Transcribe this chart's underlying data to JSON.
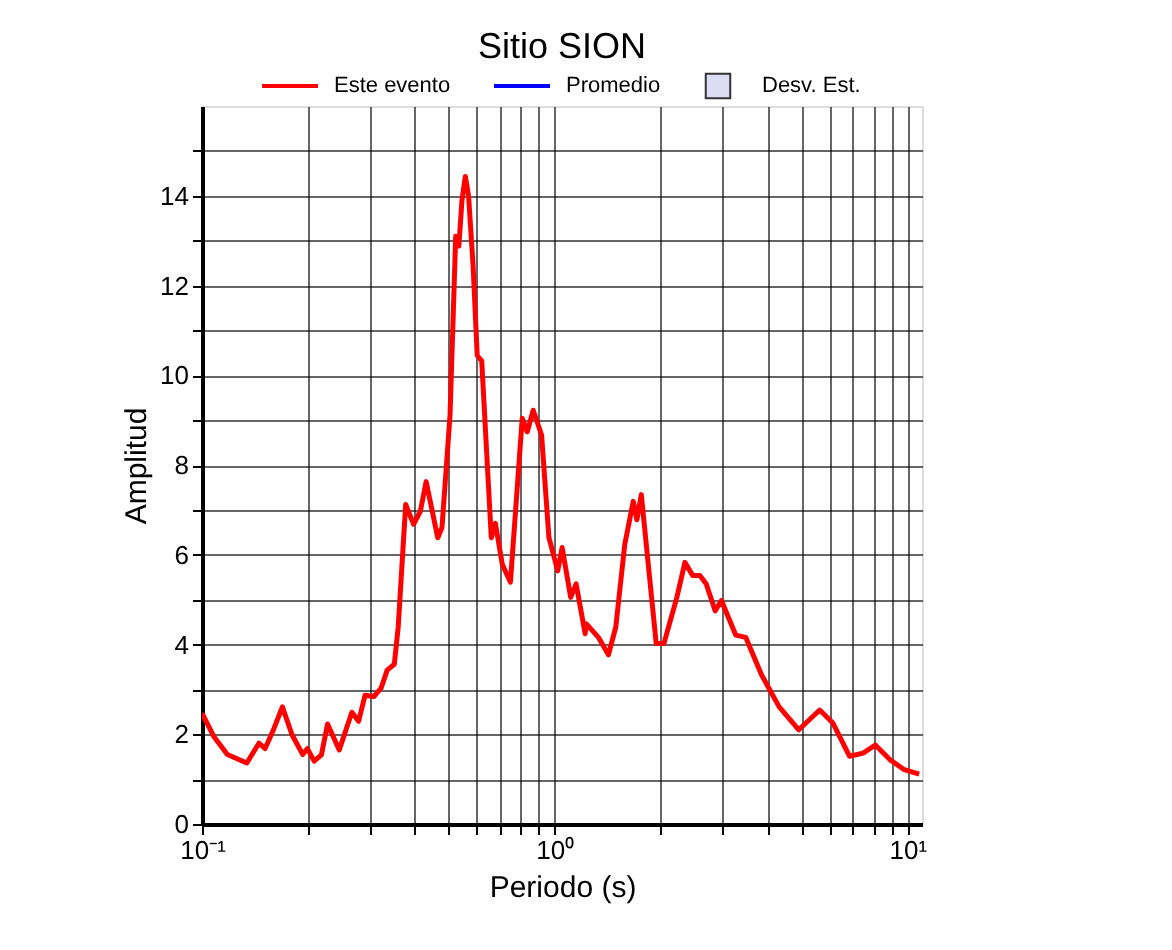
{
  "chart_data": {
    "type": "line",
    "title": "Sitio SION",
    "xlabel": "Periodo (s)",
    "ylabel": "Amplitud",
    "log": "x",
    "grid": true,
    "legend": "top",
    "xlim": [
      0.1,
      11
    ],
    "ylim": [
      0,
      16
    ],
    "xticks": [
      {
        "value": 0.1,
        "label": "10⁻¹"
      },
      {
        "value": 0.2,
        "label": null
      },
      {
        "value": 0.3,
        "label": null
      },
      {
        "value": 0.4,
        "label": null
      },
      {
        "value": 0.5,
        "label": null
      },
      {
        "value": 0.6,
        "label": null
      },
      {
        "value": 0.7,
        "label": null
      },
      {
        "value": 0.8,
        "label": null
      },
      {
        "value": 0.9,
        "label": null
      },
      {
        "value": 1,
        "label": "10⁰"
      },
      {
        "value": 2,
        "label": null
      },
      {
        "value": 3,
        "label": null
      },
      {
        "value": 4,
        "label": null
      },
      {
        "value": 5,
        "label": null
      },
      {
        "value": 6,
        "label": null
      },
      {
        "value": 7,
        "label": null
      },
      {
        "value": 8,
        "label": null
      },
      {
        "value": 9,
        "label": null
      },
      {
        "value": 10,
        "label": "10¹"
      }
    ],
    "yticks": [
      0,
      {
        "value": 1,
        "label": null
      },
      2,
      {
        "value": 3,
        "label": null
      },
      4,
      {
        "value": 5,
        "label": null
      },
      6,
      {
        "value": 7,
        "label": null
      },
      8,
      {
        "value": 9,
        "label": null
      },
      10,
      {
        "value": 11,
        "label": null
      },
      12,
      {
        "value": 13,
        "label": null
      },
      14,
      {
        "value": 15,
        "label": null
      }
    ],
    "x": [
      0.1,
      0.108,
      0.118,
      0.134,
      0.145,
      0.151,
      0.16,
      0.169,
      0.18,
      0.193,
      0.199,
      0.208,
      0.218,
      0.227,
      0.245,
      0.266,
      0.278,
      0.29,
      0.307,
      0.322,
      0.335,
      0.351,
      0.36,
      0.378,
      0.398,
      0.416,
      0.432,
      0.466,
      0.479,
      0.505,
      0.524,
      0.535,
      0.546,
      0.558,
      0.57,
      0.587,
      0.603,
      0.621,
      0.661,
      0.679,
      0.71,
      0.749,
      0.809,
      0.836,
      0.869,
      0.918,
      0.963,
      1.02,
      1.05,
      1.11,
      1.15,
      1.22,
      1.23,
      1.33,
      1.42,
      1.49,
      1.58,
      1.67,
      1.71,
      1.76,
      1.94,
      2.04,
      2.22,
      2.34,
      2.46,
      2.58,
      2.69,
      2.85,
      2.97,
      3.26,
      3.48,
      3.86,
      4.33,
      4.92,
      5.64,
      6.15,
      6.85,
      7.49,
      8.11,
      8.93,
      9.8,
      10.8
    ],
    "series": [
      {
        "name": "Este evento",
        "color": "#ff0000",
        "values": [
          2.47,
          1.95,
          1.55,
          1.36,
          1.8,
          1.68,
          2.13,
          2.61,
          1.99,
          1.55,
          1.68,
          1.4,
          1.54,
          2.23,
          1.65,
          2.49,
          2.29,
          2.87,
          2.84,
          3.03,
          3.43,
          3.56,
          4.39,
          7.12,
          6.68,
          6.97,
          7.63,
          6.38,
          6.6,
          9.11,
          13.1,
          12.88,
          13.91,
          14.43,
          13.99,
          12.44,
          10.44,
          10.32,
          6.38,
          6.7,
          5.79,
          5.39,
          9.04,
          8.74,
          9.22,
          8.67,
          6.38,
          5.64,
          6.16,
          5.05,
          5.35,
          4.24,
          4.46,
          4.16,
          3.77,
          4.39,
          6.23,
          7.19,
          6.78,
          7.34,
          4.02,
          4.02,
          5.05,
          5.83,
          5.54,
          5.54,
          5.35,
          4.75,
          4.98,
          4.21,
          4.16,
          3.32,
          2.61,
          2.1,
          2.54,
          2.25,
          1.51,
          1.58,
          1.76,
          1.43,
          1.21,
          1.11
        ]
      },
      {
        "name": "Promedio",
        "color": "#0000ff",
        "values": [
          null,
          null,
          null,
          null,
          null,
          null,
          null,
          null,
          null,
          null,
          null,
          null,
          null,
          null,
          null,
          null,
          null,
          null,
          null,
          null,
          null,
          null,
          null,
          null,
          null,
          null,
          null,
          null,
          null,
          null,
          null,
          null,
          null,
          null,
          null,
          null,
          null,
          null,
          null,
          null,
          null,
          null,
          null,
          null,
          null,
          null,
          null,
          null,
          null,
          null,
          null,
          null,
          null,
          null,
          null,
          null,
          null,
          null,
          null,
          null,
          null,
          null,
          null,
          null,
          null,
          null,
          null,
          null,
          null,
          null,
          null,
          null,
          null,
          null,
          null,
          null,
          null,
          null,
          null,
          null,
          null,
          null
        ]
      },
      {
        "name": "Desv. Est.",
        "type": "area",
        "color": "#dcdcf5",
        "values": [
          null,
          null,
          null,
          null,
          null,
          null,
          null,
          null,
          null,
          null,
          null,
          null,
          null,
          null,
          null,
          null,
          null,
          null,
          null,
          null,
          null,
          null,
          null,
          null,
          null,
          null,
          null,
          null,
          null,
          null,
          null,
          null,
          null,
          null,
          null,
          null,
          null,
          null,
          null,
          null,
          null,
          null,
          null,
          null,
          null,
          null,
          null,
          null,
          null,
          null,
          null,
          null,
          null,
          null,
          null,
          null,
          null,
          null,
          null,
          null,
          null,
          null,
          null,
          null,
          null,
          null,
          null,
          null,
          null,
          null,
          null,
          null,
          null,
          null,
          null,
          null,
          null,
          null,
          null,
          null,
          null,
          null
        ]
      }
    ]
  }
}
